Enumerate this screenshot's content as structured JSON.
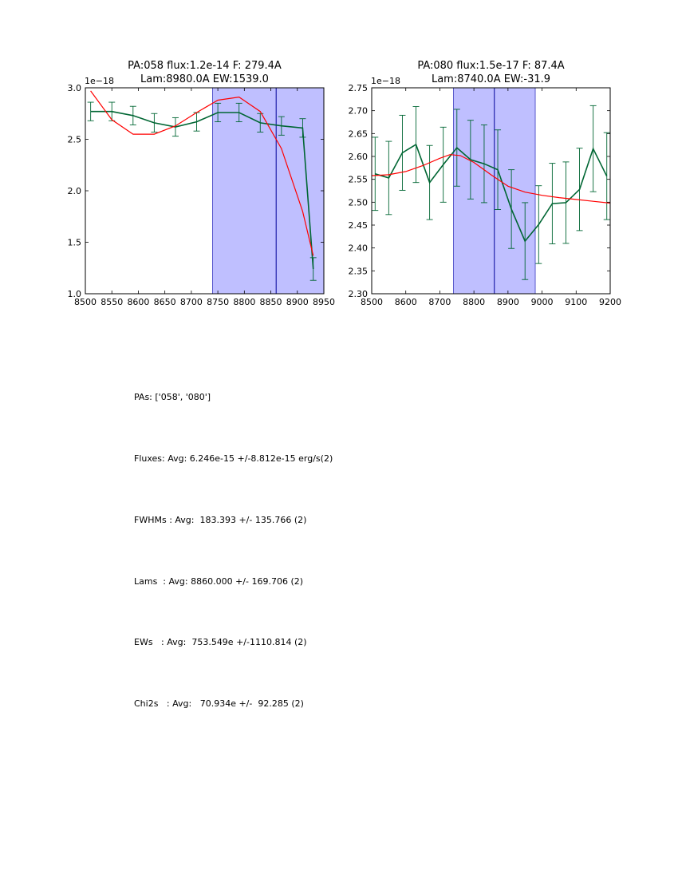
{
  "chart_data": [
    {
      "type": "line",
      "title": "PA:058 flux:1.2e-14 F: 279.4A",
      "subtitle": "Lam:8980.0A EW:1539.0",
      "y_offset_label": "1e−18",
      "xlabel": "",
      "ylabel": "",
      "xlim": [
        8500,
        8950
      ],
      "ylim": [
        1.0,
        3.0
      ],
      "xticks": [
        "8500",
        "8550",
        "8600",
        "8650",
        "8700",
        "8750",
        "8800",
        "8850",
        "8900",
        "8950"
      ],
      "yticks": [
        "1.0",
        "1.5",
        "2.0",
        "2.5",
        "3.0"
      ],
      "shaded_region": [
        8740,
        8950
      ],
      "vline": 8860,
      "series": [
        {
          "name": "data",
          "color": "#006633",
          "x": [
            8510,
            8550,
            8590,
            8630,
            8670,
            8710,
            8750,
            8790,
            8830,
            8870,
            8910,
            8930
          ],
          "y": [
            2.77,
            2.77,
            2.73,
            2.66,
            2.62,
            2.67,
            2.76,
            2.76,
            2.66,
            2.63,
            2.61,
            1.24
          ],
          "err": [
            0.09,
            0.09,
            0.09,
            0.09,
            0.09,
            0.09,
            0.09,
            0.09,
            0.09,
            0.09,
            0.09,
            0.11
          ]
        },
        {
          "name": "fit",
          "color": "#ff0000",
          "x": [
            8510,
            8550,
            8590,
            8630,
            8670,
            8710,
            8750,
            8790,
            8830,
            8870,
            8910,
            8930
          ],
          "y": [
            2.97,
            2.69,
            2.55,
            2.55,
            2.63,
            2.76,
            2.88,
            2.91,
            2.77,
            2.41,
            1.8,
            1.37
          ]
        }
      ]
    },
    {
      "type": "line",
      "title": "PA:080 flux:1.5e-17 F: 87.4A",
      "subtitle": "Lam:8740.0A EW:-31.9",
      "y_offset_label": "1e−18",
      "xlabel": "",
      "ylabel": "",
      "xlim": [
        8500,
        9200
      ],
      "ylim": [
        2.3,
        2.75
      ],
      "xticks": [
        "8500",
        "8600",
        "8700",
        "8800",
        "8900",
        "9000",
        "9100",
        "9200"
      ],
      "yticks": [
        "2.30",
        "2.35",
        "2.40",
        "2.45",
        "2.50",
        "2.55",
        "2.60",
        "2.65",
        "2.70",
        "2.75"
      ],
      "shaded_region": [
        8740,
        8980
      ],
      "vline": 8860,
      "series": [
        {
          "name": "data",
          "color": "#006633",
          "x": [
            8510,
            8550,
            8590,
            8630,
            8670,
            8710,
            8750,
            8790,
            8830,
            8870,
            8910,
            8950,
            8990,
            9030,
            9070,
            9110,
            9150,
            9190
          ],
          "y": [
            2.562,
            2.553,
            2.608,
            2.626,
            2.543,
            2.582,
            2.619,
            2.593,
            2.584,
            2.571,
            2.485,
            2.415,
            2.451,
            2.497,
            2.499,
            2.528,
            2.617,
            2.557
          ],
          "err": [
            0.08,
            0.08,
            0.082,
            0.083,
            0.081,
            0.082,
            0.084,
            0.086,
            0.085,
            0.087,
            0.086,
            0.084,
            0.085,
            0.088,
            0.089,
            0.09,
            0.094,
            0.095
          ]
        },
        {
          "name": "fit",
          "color": "#ff0000",
          "x": [
            8500,
            8550,
            8600,
            8650,
            8700,
            8730,
            8760,
            8800,
            8850,
            8900,
            8950,
            9000,
            9050,
            9100,
            9150,
            9200
          ],
          "y": [
            2.558,
            2.56,
            2.567,
            2.58,
            2.596,
            2.604,
            2.602,
            2.587,
            2.56,
            2.535,
            2.522,
            2.515,
            2.51,
            2.506,
            2.502,
            2.498
          ]
        }
      ]
    }
  ],
  "summary": {
    "pas": "PAs: ['058', '080']",
    "fluxes": "Fluxes: Avg: 6.246e-15 +/-8.812e-15 erg/s(2)",
    "fwhms": "FWHMs : Avg:  183.393 +/- 135.766 (2)",
    "lams": "Lams  : Avg: 8860.000 +/- 169.706 (2)",
    "ews": "EWs   : Avg:  753.549e +/-1110.814 (2)",
    "chi2s": "Chi2s   : Avg:   70.934e +/-  92.285 (2)"
  }
}
